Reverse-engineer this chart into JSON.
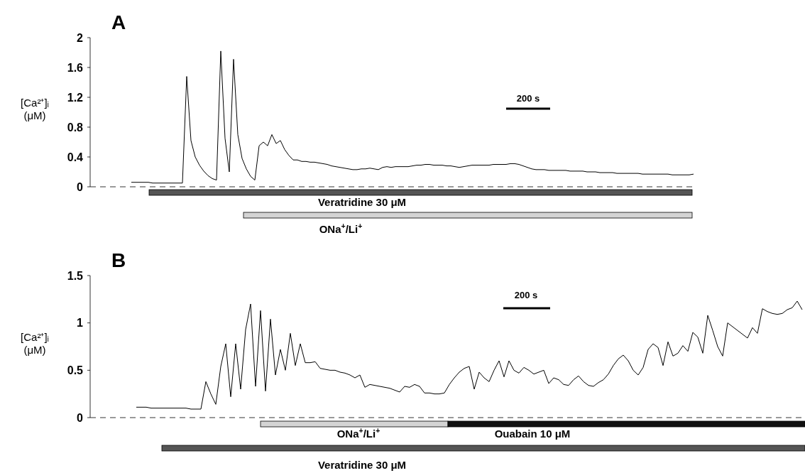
{
  "chart_data": [
    {
      "type": "line",
      "title": "A",
      "ylabel": "[Ca²⁺]ᵢ (μM)",
      "ylim": [
        0,
        2
      ],
      "yticks": [
        0,
        0.4,
        0.8,
        1.2,
        1.6,
        2
      ],
      "tick_labels": "y",
      "categories": [
        null,
        null,
        null,
        null,
        null,
        null,
        null,
        null,
        null,
        null,
        null,
        null,
        null,
        null,
        null,
        null,
        null,
        null,
        null,
        null,
        null,
        null,
        null,
        null,
        null,
        null,
        null,
        null,
        null,
        null,
        null,
        null,
        null,
        null,
        null,
        null,
        null,
        null,
        null,
        null,
        null,
        null,
        null,
        null,
        null,
        null,
        null,
        null,
        null,
        null,
        null,
        null,
        null,
        null,
        null,
        null,
        null,
        null,
        null,
        null,
        null,
        null,
        null,
        null,
        null,
        null,
        null,
        null,
        null,
        null,
        null,
        null,
        null,
        null,
        null,
        null,
        null,
        null,
        null,
        null,
        null,
        null,
        null,
        null,
        null,
        null,
        null,
        null,
        null,
        null,
        null,
        null,
        null,
        null,
        null,
        null,
        null,
        null,
        null,
        null,
        null,
        null,
        null,
        null,
        null,
        null,
        null,
        null,
        null,
        null,
        null,
        null,
        null,
        null,
        null,
        null,
        null,
        null,
        null,
        null,
        null,
        null,
        null,
        null,
        null,
        null,
        null,
        null,
        null,
        null,
        null,
        null,
        null
      ],
      "series": [
        {
          "color": "#000000",
          "values": [
            0.06,
            0.06,
            0.06,
            0.06,
            0.06,
            0.05,
            0.05,
            0.05,
            0.05,
            0.05,
            0.05,
            0.05,
            0.05,
            1.48,
            0.62,
            0.4,
            0.29,
            0.21,
            0.15,
            0.11,
            0.09,
            1.82,
            0.65,
            0.2,
            1.71,
            0.7,
            0.38,
            0.24,
            0.14,
            0.09,
            0.55,
            0.6,
            0.55,
            0.7,
            0.58,
            0.62,
            0.5,
            0.42,
            0.36,
            0.36,
            0.34,
            0.34,
            0.33,
            0.33,
            0.32,
            0.31,
            0.3,
            0.28,
            0.27,
            0.26,
            0.25,
            0.24,
            0.23,
            0.23,
            0.24,
            0.24,
            0.25,
            0.24,
            0.23,
            0.26,
            0.27,
            0.26,
            0.27,
            0.27,
            0.27,
            0.27,
            0.28,
            0.29,
            0.29,
            0.3,
            0.3,
            0.29,
            0.29,
            0.29,
            0.28,
            0.28,
            0.27,
            0.26,
            0.27,
            0.28,
            0.29,
            0.29,
            0.29,
            0.29,
            0.29,
            0.3,
            0.3,
            0.3,
            0.3,
            0.31,
            0.31,
            0.3,
            0.28,
            0.26,
            0.24,
            0.23,
            0.23,
            0.23,
            0.22,
            0.22,
            0.22,
            0.22,
            0.22,
            0.21,
            0.21,
            0.21,
            0.21,
            0.2,
            0.2,
            0.2,
            0.19,
            0.19,
            0.19,
            0.19,
            0.18,
            0.18,
            0.18,
            0.18,
            0.18,
            0.18,
            0.17,
            0.17,
            0.17,
            0.17,
            0.17,
            0.17,
            0.17,
            0.16,
            0.16,
            0.16,
            0.16,
            0.16,
            0.17
          ]
        }
      ],
      "ref_lines": [
        {
          "axis": "y",
          "value": 0,
          "line_style": "dashed",
          "color": "#000000"
        }
      ],
      "annotations": [
        "200 s",
        "Veratridine 30 μM",
        "ONa$^{+}$/Li$^{+}$"
      ]
    },
    {
      "type": "line",
      "title": "B",
      "ylabel": "[Ca²⁺]ᵢ (μM)",
      "ylim": [
        0,
        1.5
      ],
      "yticks": [
        0,
        0.5,
        1,
        1.5
      ],
      "tick_labels": "y",
      "categories": [
        null,
        null,
        null,
        null,
        null,
        null,
        null,
        null,
        null,
        null,
        null,
        null,
        null,
        null,
        null,
        null,
        null,
        null,
        null,
        null,
        null,
        null,
        null,
        null,
        null,
        null,
        null,
        null,
        null,
        null,
        null,
        null,
        null,
        null,
        null,
        null,
        null,
        null,
        null,
        null,
        null,
        null,
        null,
        null,
        null,
        null,
        null,
        null,
        null,
        null,
        null,
        null,
        null,
        null,
        null,
        null,
        null,
        null,
        null,
        null,
        null,
        null,
        null,
        null,
        null,
        null,
        null,
        null,
        null,
        null,
        null,
        null,
        null,
        null,
        null,
        null,
        null,
        null,
        null,
        null,
        null,
        null,
        null,
        null,
        null,
        null,
        null,
        null,
        null,
        null,
        null,
        null,
        null,
        null,
        null,
        null,
        null,
        null,
        null,
        null,
        null,
        null,
        null,
        null,
        null,
        null,
        null,
        null,
        null,
        null,
        null,
        null,
        null,
        null,
        null,
        null,
        null,
        null,
        null,
        null,
        null,
        null,
        null,
        null,
        null,
        null,
        null,
        null,
        null,
        null,
        null,
        null,
        null,
        null,
        null
      ],
      "series": [
        {
          "color": "#000000",
          "values": [
            0.11,
            0.11,
            0.11,
            0.1,
            0.1,
            0.1,
            0.1,
            0.1,
            0.1,
            0.1,
            0.1,
            0.09,
            0.09,
            0.09,
            0.38,
            0.25,
            0.14,
            0.54,
            0.78,
            0.22,
            0.78,
            0.3,
            0.93,
            1.2,
            0.33,
            1.13,
            0.28,
            1.04,
            0.45,
            0.72,
            0.5,
            0.89,
            0.55,
            0.78,
            0.58,
            0.58,
            0.59,
            0.52,
            0.51,
            0.5,
            0.5,
            0.48,
            0.47,
            0.45,
            0.42,
            0.45,
            0.32,
            0.35,
            0.34,
            0.33,
            0.32,
            0.31,
            0.29,
            0.27,
            0.33,
            0.32,
            0.35,
            0.33,
            0.26,
            0.26,
            0.25,
            0.25,
            0.26,
            0.35,
            0.42,
            0.48,
            0.52,
            0.54,
            0.3,
            0.48,
            0.42,
            0.38,
            0.5,
            0.6,
            0.43,
            0.6,
            0.5,
            0.47,
            0.53,
            0.5,
            0.46,
            0.48,
            0.5,
            0.36,
            0.42,
            0.4,
            0.35,
            0.34,
            0.4,
            0.44,
            0.38,
            0.34,
            0.33,
            0.37,
            0.4,
            0.46,
            0.55,
            0.62,
            0.66,
            0.6,
            0.5,
            0.45,
            0.53,
            0.72,
            0.78,
            0.74,
            0.55,
            0.8,
            0.65,
            0.68,
            0.76,
            0.7,
            0.9,
            0.85,
            0.68,
            1.08,
            0.92,
            0.75,
            0.65,
            1.0,
            0.96,
            0.92,
            0.88,
            0.84,
            0.95,
            0.89,
            1.15,
            1.12,
            1.1,
            1.09,
            1.1,
            1.14,
            1.16,
            1.23,
            1.14
          ]
        }
      ],
      "ref_lines": [
        {
          "axis": "y",
          "value": 0,
          "line_style": "dashed",
          "color": "#000000"
        }
      ],
      "annotations": [
        "200 s",
        "ONa$^{+}$/Li$^{+}$",
        "Ouabain 10 μM",
        "Veratridine 30 μM"
      ]
    }
  ]
}
